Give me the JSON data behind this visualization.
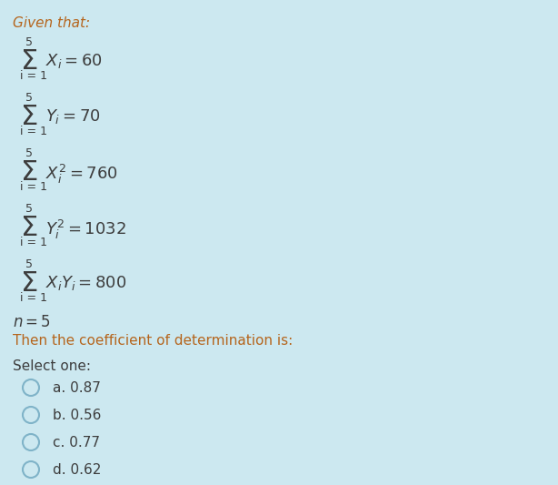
{
  "background_color": "#cce8f0",
  "title_text": "Given that:",
  "sigma_lines": [
    {
      "expr_main": "X",
      "subscript": "i",
      "superscript": "",
      "suffix": "= 60"
    },
    {
      "expr_main": "Y",
      "subscript": "i",
      "superscript": "",
      "suffix": "= 70"
    },
    {
      "expr_main": "X",
      "subscript": "i",
      "superscript": "2",
      "suffix": " = 760"
    },
    {
      "expr_main": "Y",
      "subscript": "i",
      "superscript": "2",
      "suffix": " = 1032"
    },
    {
      "expr_main": "X",
      "subscript": "i",
      "suffix2": "Y",
      "subscript2": "i",
      "superscript": "",
      "suffix": "= 800"
    }
  ],
  "n_text": "n = 5",
  "question_text": "Then the coefficient of determination is:",
  "select_text": "Select one:",
  "options": [
    "a. 0.87",
    "b. 0.56",
    "c. 0.77",
    "d. 0.62"
  ],
  "text_color": "#3d3d3d",
  "title_color": "#b5651d",
  "question_color": "#b5651d",
  "font_size_title": 11,
  "font_size_main": 11,
  "font_size_sigma": 20,
  "font_size_small": 8
}
